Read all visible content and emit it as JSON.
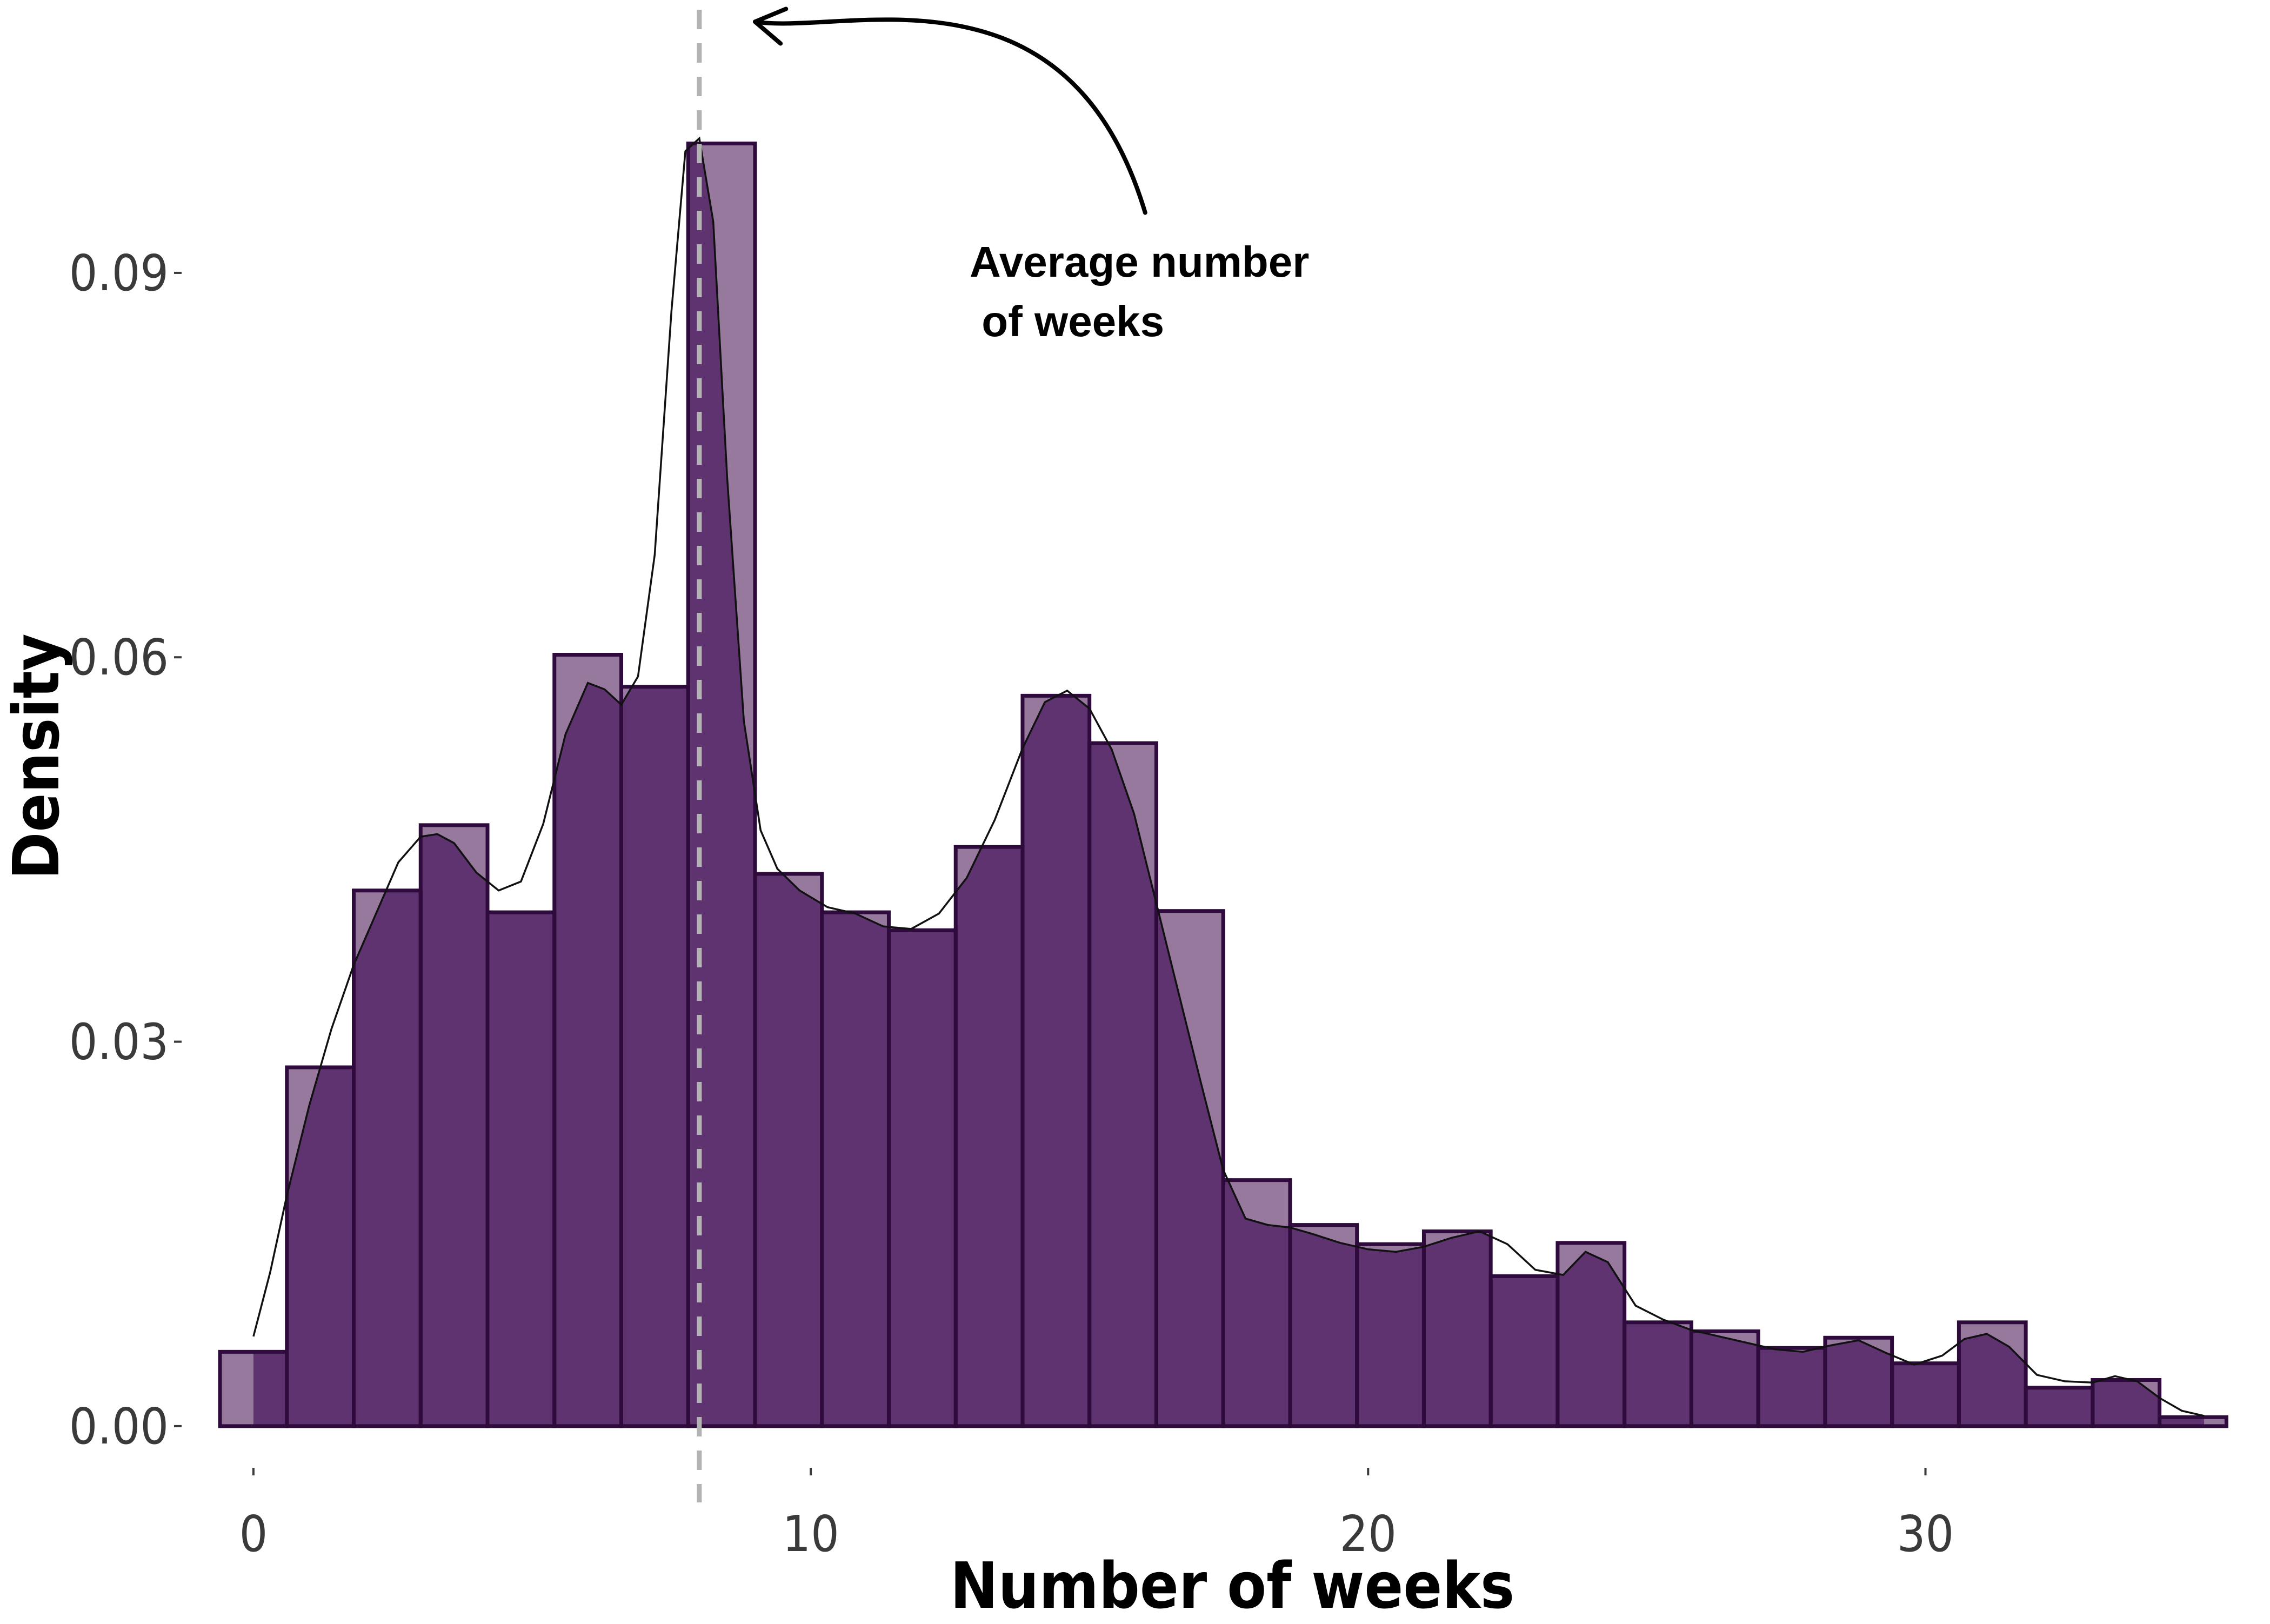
{
  "chart_data": {
    "type": "bar",
    "subtype": "histogram-with-density",
    "xlabel": "Number of weeks",
    "ylabel": "Density",
    "xlim": [
      -1.25,
      35.6
    ],
    "ylim": [
      -0.003,
      0.1075
    ],
    "x_ticks": [
      0,
      10,
      20,
      30
    ],
    "x_tick_labels": [
      "0",
      "10",
      "20",
      "30"
    ],
    "y_ticks": [
      0,
      0.03,
      0.06,
      0.09
    ],
    "y_tick_labels": [
      "0.00",
      "0.03",
      "0.06",
      "0.09"
    ],
    "grid": false,
    "legend": "none",
    "bin_width": 1.2,
    "bin_centers": [
      0.0,
      1.2,
      2.4,
      3.6,
      4.8,
      6.0,
      7.2,
      8.4,
      9.6,
      10.8,
      12.0,
      13.2,
      14.4,
      15.6,
      16.8,
      18.0,
      19.2,
      20.4,
      21.6,
      22.8,
      24.0,
      25.2,
      26.4,
      27.6,
      28.8,
      30.0,
      31.2,
      32.4,
      33.6,
      34.8
    ],
    "values": [
      0.0058,
      0.028,
      0.0418,
      0.0469,
      0.0401,
      0.0602,
      0.0577,
      0.1001,
      0.0431,
      0.0401,
      0.0387,
      0.0452,
      0.057,
      0.0533,
      0.0402,
      0.0192,
      0.0157,
      0.0142,
      0.0152,
      0.0117,
      0.0143,
      0.0081,
      0.0074,
      0.0061,
      0.0069,
      0.0049,
      0.0081,
      0.003,
      0.0036,
      0.0007
    ],
    "density_curve": {
      "x": [
        0.0,
        0.3,
        0.6,
        1.0,
        1.4,
        1.8,
        2.2,
        2.6,
        3.0,
        3.3,
        3.6,
        4.0,
        4.4,
        4.8,
        5.2,
        5.6,
        6.0,
        6.3,
        6.6,
        6.9,
        7.2,
        7.5,
        7.75,
        8.0,
        8.25,
        8.5,
        8.8,
        9.1,
        9.4,
        9.8,
        10.3,
        10.8,
        11.3,
        11.8,
        12.3,
        12.8,
        13.3,
        13.8,
        14.2,
        14.6,
        15.0,
        15.4,
        15.8,
        16.2,
        16.6,
        17.0,
        17.4,
        17.8,
        18.2,
        18.6,
        19.0,
        19.5,
        20.0,
        20.5,
        21.0,
        21.5,
        22.0,
        22.5,
        23.0,
        23.5,
        23.9,
        24.3,
        24.8,
        25.3,
        25.8,
        26.3,
        26.8,
        27.3,
        27.8,
        28.3,
        28.8,
        29.3,
        29.8,
        30.3,
        30.7,
        31.1,
        31.5,
        32.0,
        32.5,
        33.0,
        33.4,
        33.8,
        34.2,
        34.6,
        35.0
      ],
      "y": [
        0.007,
        0.012,
        0.018,
        0.025,
        0.031,
        0.036,
        0.04,
        0.044,
        0.046,
        0.0462,
        0.0455,
        0.0432,
        0.0418,
        0.0425,
        0.047,
        0.054,
        0.058,
        0.0575,
        0.0563,
        0.0585,
        0.068,
        0.087,
        0.0995,
        0.1005,
        0.094,
        0.074,
        0.055,
        0.0465,
        0.0435,
        0.0418,
        0.0405,
        0.04,
        0.039,
        0.0388,
        0.04,
        0.0428,
        0.0473,
        0.0529,
        0.0565,
        0.0574,
        0.056,
        0.0528,
        0.0478,
        0.0408,
        0.0338,
        0.0268,
        0.02,
        0.0162,
        0.0157,
        0.0155,
        0.015,
        0.0143,
        0.0138,
        0.0136,
        0.014,
        0.0147,
        0.0152,
        0.0142,
        0.0122,
        0.0118,
        0.0136,
        0.0128,
        0.0094,
        0.0083,
        0.0075,
        0.007,
        0.0065,
        0.006,
        0.0058,
        0.0063,
        0.0067,
        0.0057,
        0.0048,
        0.0055,
        0.0068,
        0.0072,
        0.0062,
        0.004,
        0.0035,
        0.0034,
        0.0039,
        0.0035,
        0.0022,
        0.0012,
        0.0008
      ]
    },
    "mean_line": {
      "x": 8.0,
      "style": "dashed",
      "color": "#b3b3b3"
    },
    "annotation": {
      "text_line1": "Average number",
      "text_line2": " of weeks",
      "text_x": 12.85,
      "text_y": 0.0897,
      "arrow_from": [
        16.0,
        0.0947
      ],
      "arrow_ctrl1": [
        14.6,
        0.115
      ],
      "arrow_ctrl2": [
        10.6,
        0.1085
      ],
      "arrow_to": [
        9.0,
        0.1096
      ]
    },
    "colors": {
      "bar_fill": "#5f3370",
      "bar_fill_light": "#97799e",
      "bar_stroke": "#2e0a3d",
      "density_fill": "#5f3370",
      "density_stroke": "#111111",
      "mean_line": "#b3b3b3",
      "text": "#000000",
      "tick_text": "#3a3a3a"
    }
  }
}
